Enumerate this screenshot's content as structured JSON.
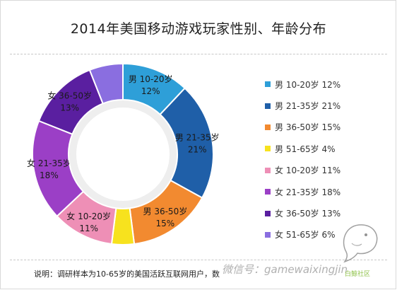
{
  "title": "2014年美国移动游戏玩家性别、年龄分布",
  "note": "说明：调研样本为10-65岁的美国活跃互联网用户，数",
  "watermark_text": "微信号：gamewaixingjin",
  "logo_label": "白鲸社区",
  "colors": {
    "m_10_20": "#2e9fd8",
    "m_21_35": "#1f5fa8",
    "m_36_50": "#f28a30",
    "m_51_65": "#f7e21e",
    "f_10_20": "#ee8fb6",
    "f_21_35": "#9b3fc6",
    "f_36_50": "#5a1fa0",
    "f_51_65": "#8a6ee0"
  },
  "chart_data": {
    "type": "pie",
    "title": "2014年美国移动游戏玩家性别、年龄分布",
    "legend_position": "right",
    "slices": [
      {
        "key": "m_10_20",
        "legend": "男 10-20岁 12%",
        "label": "男 10-20岁",
        "pct_label": "12%",
        "value": 12
      },
      {
        "key": "m_21_35",
        "legend": "男 21-35岁 21%",
        "label": "男 21-35岁",
        "pct_label": "21%",
        "value": 21
      },
      {
        "key": "m_36_50",
        "legend": "男 36-50岁 15%",
        "label": "男 36-50岁",
        "pct_label": "15%",
        "value": 15
      },
      {
        "key": "m_51_65",
        "legend": "男 51-65岁 4%",
        "label": "",
        "pct_label": "",
        "value": 4
      },
      {
        "key": "f_10_20",
        "legend": "女 10-20岁 11%",
        "label": "女 10-20岁",
        "pct_label": "11%",
        "value": 11
      },
      {
        "key": "f_21_35",
        "legend": "女 21-35岁 18%",
        "label": "女 21-35岁",
        "pct_label": "18%",
        "value": 18
      },
      {
        "key": "f_36_50",
        "legend": "女 36-50岁 13%",
        "label": "女 36-50岁",
        "pct_label": "13%",
        "value": 13
      },
      {
        "key": "f_51_65",
        "legend": "女 51-65岁 6%",
        "label": "",
        "pct_label": "",
        "value": 6
      }
    ]
  }
}
